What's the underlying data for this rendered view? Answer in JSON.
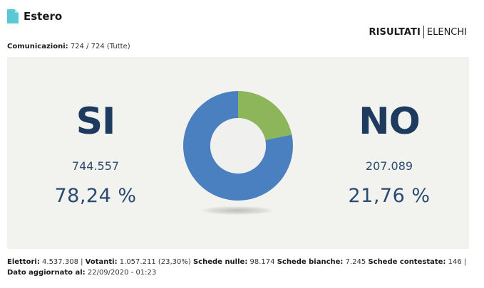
{
  "header": {
    "title": "Estero",
    "icon": "document-icon"
  },
  "nav": {
    "active": "RISULTATI",
    "other": "ELENCHI"
  },
  "communications": {
    "label": "Comunicazioni:",
    "value": "724 / 724 (Tutte)"
  },
  "results": {
    "si": {
      "label": "SI",
      "votes": "744.557",
      "percent": "78,24 %"
    },
    "no": {
      "label": "NO",
      "votes": "207.089",
      "percent": "21,76 %"
    }
  },
  "chart_data": {
    "type": "pie",
    "categories": [
      "SI",
      "NO"
    ],
    "values": [
      78.24,
      21.76
    ],
    "colors": [
      "#4a80c0",
      "#8db55a"
    ],
    "donut": true
  },
  "footer": {
    "elettori_label": "Elettori:",
    "elettori_value": "4.537.308",
    "votanti_label": "Votanti:",
    "votanti_value": "1.057.211 (23,30%)",
    "nulle_label": "Schede nulle:",
    "nulle_value": "98.174",
    "bianche_label": "Schede bianche:",
    "bianche_value": "7.245",
    "contestate_label": "Schede contestate:",
    "contestate_value": "146",
    "updated_label": "Dato aggiornato al:",
    "updated_value": "22/09/2020 - 01:23"
  }
}
